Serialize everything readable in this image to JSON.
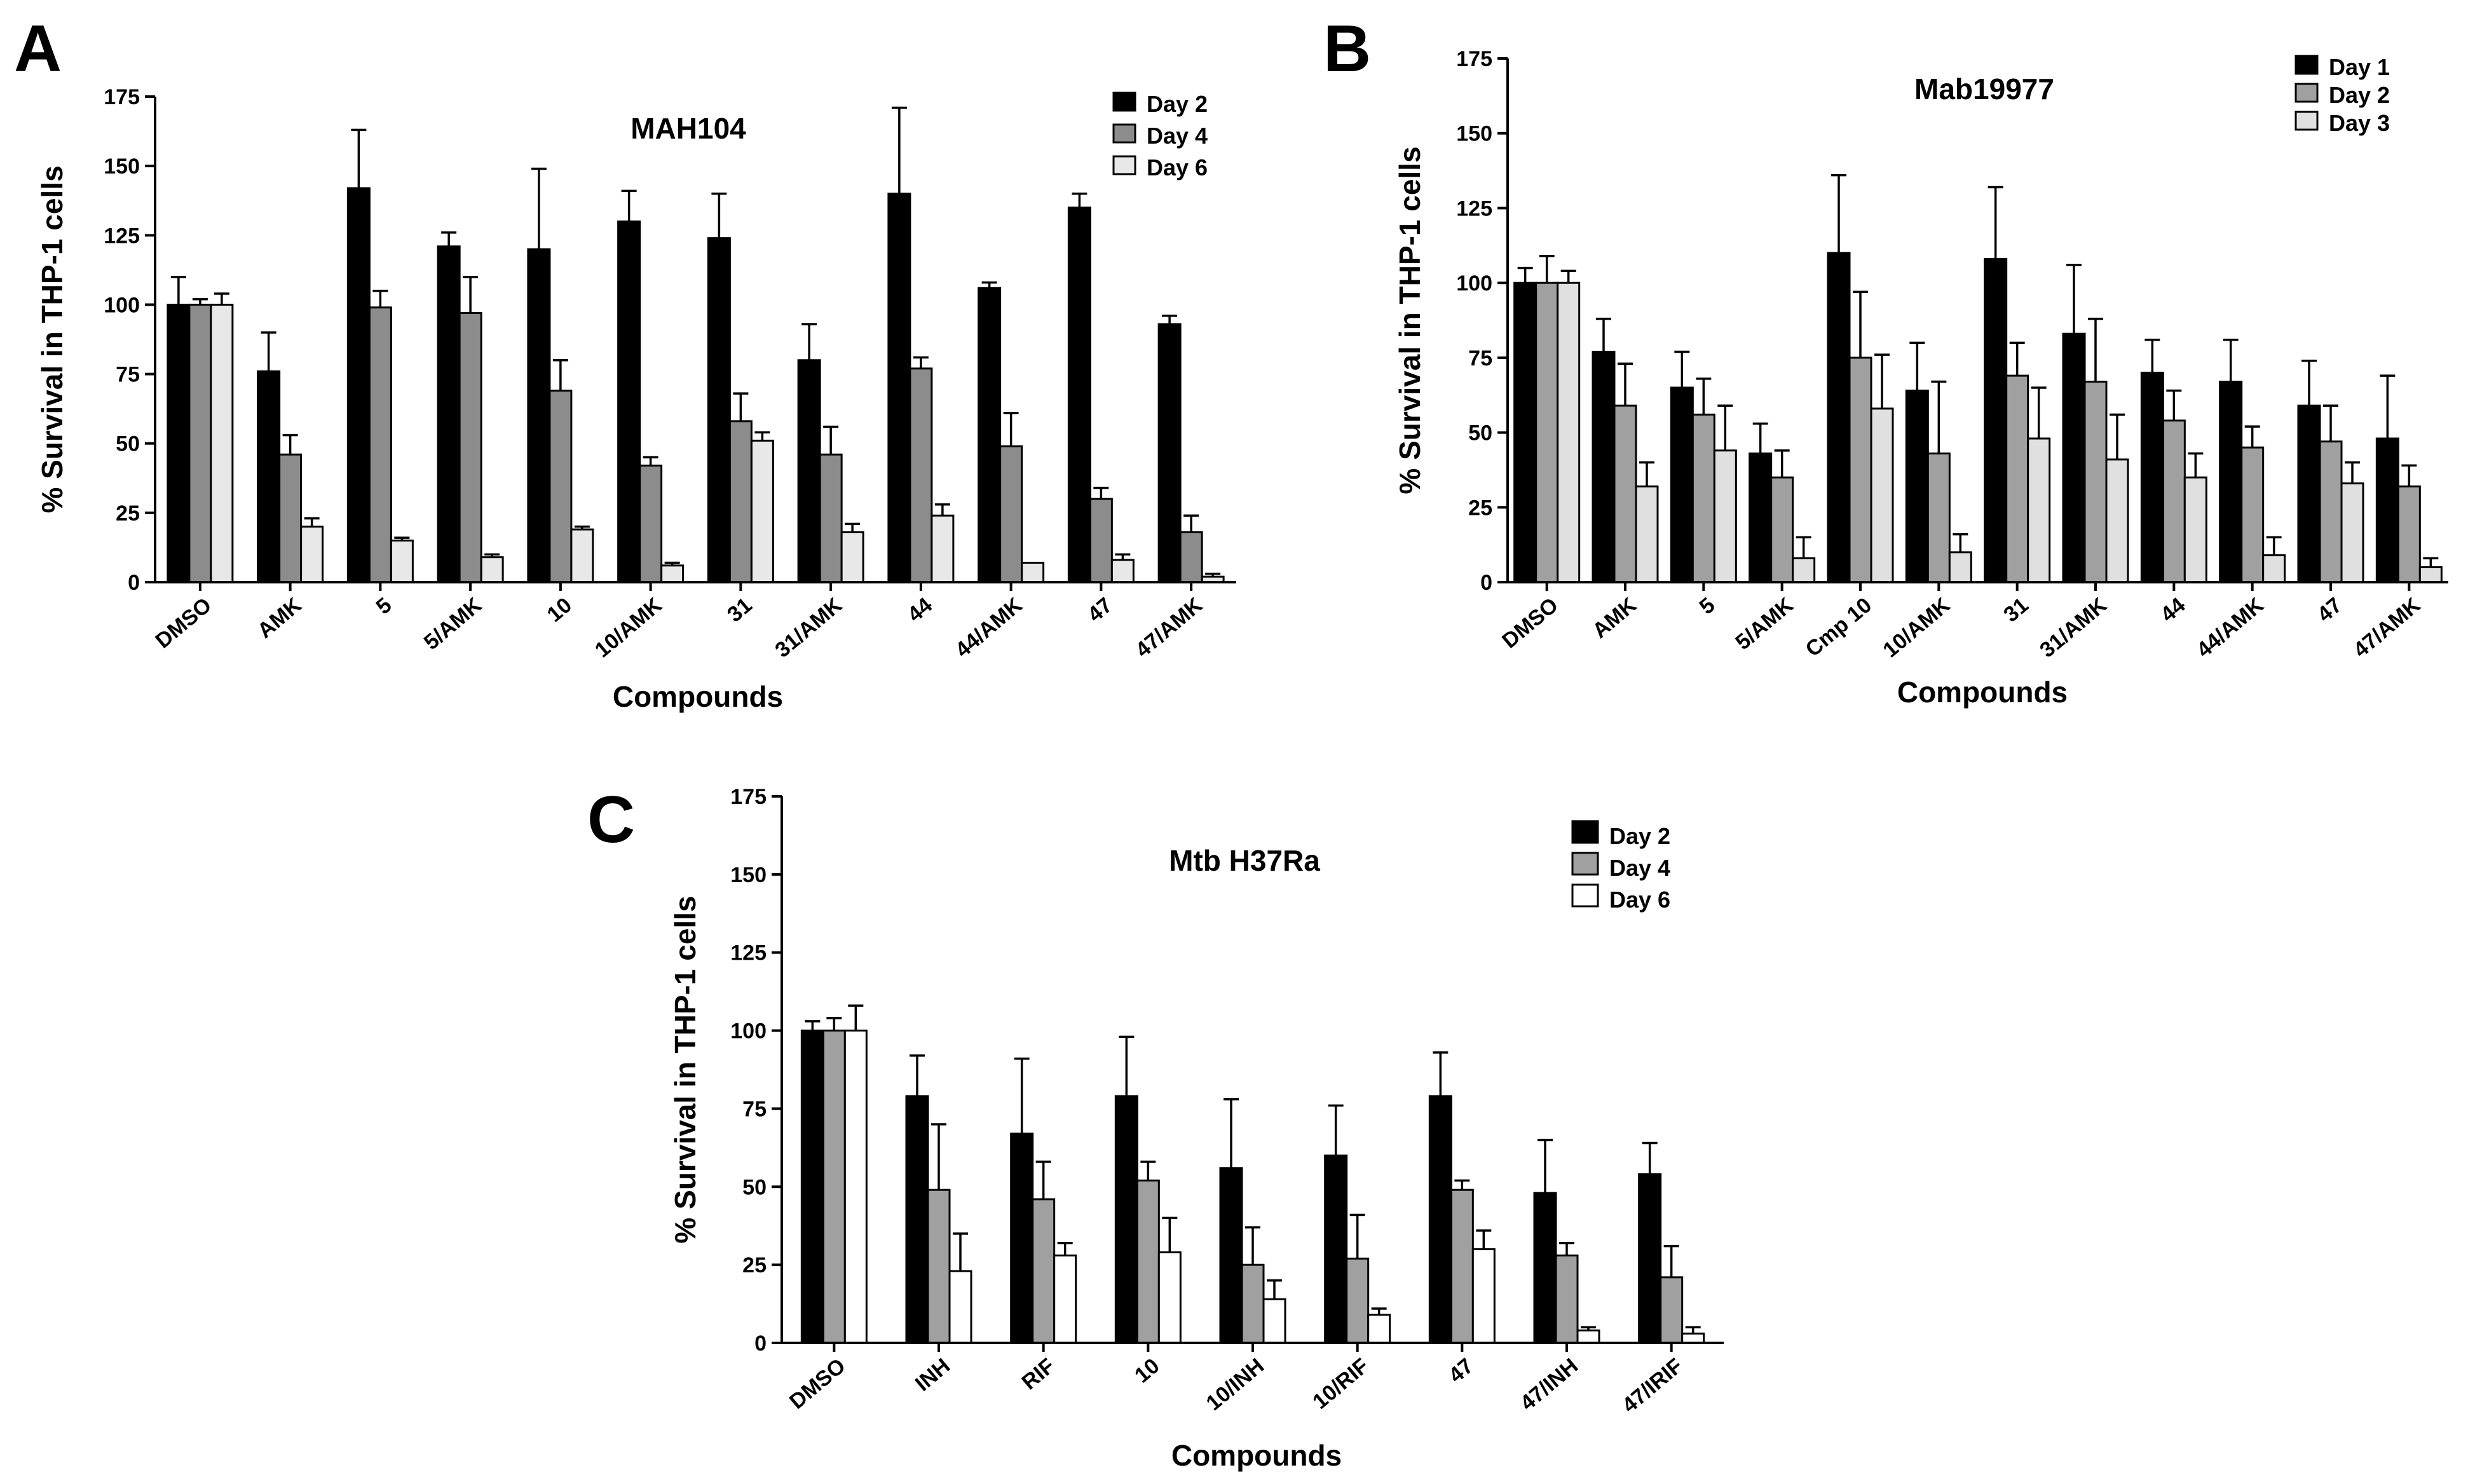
{
  "chart_data": [
    {
      "panel": "A",
      "type": "bar",
      "title": "MAH104",
      "xlabel": "Compounds",
      "ylabel": "% Survival in THP-1 cells",
      "ylim": [
        0,
        175
      ],
      "yticks": [
        0,
        25,
        50,
        75,
        100,
        125,
        150,
        175
      ],
      "categories": [
        "DMSO",
        "AMK",
        "5",
        "5/AMK",
        "10",
        "10/AMK",
        "31",
        "31/AMK",
        "44",
        "44/AMK",
        "47",
        "47/AMK"
      ],
      "series": [
        {
          "name": "Day 2",
          "color": "#000000",
          "values": [
            100,
            76,
            142,
            121,
            120,
            130,
            124,
            80,
            140,
            106,
            135,
            93
          ],
          "errors": [
            10,
            14,
            21,
            5,
            29,
            11,
            16,
            13,
            31,
            2,
            5,
            3
          ]
        },
        {
          "name": "Day 4",
          "color": "#8c8c8c",
          "values": [
            100,
            46,
            99,
            97,
            69,
            42,
            58,
            46,
            77,
            49,
            30,
            18
          ],
          "errors": [
            2,
            7,
            6,
            13,
            11,
            3,
            10,
            10,
            4,
            12,
            4,
            6
          ]
        },
        {
          "name": "Day 6",
          "color": "#e8e8e8",
          "values": [
            100,
            20,
            15,
            9,
            19,
            6,
            51,
            18,
            24,
            7,
            8,
            2
          ],
          "errors": [
            4,
            3,
            1,
            1,
            1,
            1,
            3,
            3,
            4,
            0,
            2,
            1
          ]
        }
      ],
      "grid": false,
      "legend": "top-right"
    },
    {
      "panel": "B",
      "type": "bar",
      "title": "Mab19977",
      "xlabel": "Compounds",
      "ylabel": "% Survival in THP-1 cells",
      "ylim": [
        0,
        175
      ],
      "yticks": [
        0,
        25,
        50,
        75,
        100,
        125,
        150,
        175
      ],
      "categories": [
        "DMSO",
        "AMK",
        "5",
        "5/AMK",
        "Cmp 10",
        "10/AMK",
        "31",
        "31/AMK",
        "44",
        "44/AMK",
        "47",
        "47/AMK"
      ],
      "series": [
        {
          "name": "Day 1",
          "color": "#000000",
          "values": [
            100,
            77,
            65,
            43,
            110,
            64,
            108,
            83,
            70,
            67,
            59,
            48
          ],
          "errors": [
            5,
            11,
            12,
            10,
            26,
            16,
            24,
            23,
            11,
            14,
            15,
            21
          ]
        },
        {
          "name": "Day 2",
          "color": "#a0a0a0",
          "values": [
            100,
            59,
            56,
            35,
            75,
            43,
            69,
            67,
            54,
            45,
            47,
            32
          ],
          "errors": [
            9,
            14,
            12,
            9,
            22,
            24,
            11,
            21,
            10,
            7,
            12,
            7
          ]
        },
        {
          "name": "Day 3",
          "color": "#e0e0e0",
          "values": [
            100,
            32,
            44,
            8,
            58,
            10,
            48,
            41,
            35,
            9,
            33,
            5
          ],
          "errors": [
            4,
            8,
            15,
            7,
            18,
            6,
            17,
            15,
            8,
            6,
            7,
            3
          ]
        }
      ],
      "grid": false,
      "legend": "top-right"
    },
    {
      "panel": "C",
      "type": "bar",
      "title": "Mtb H37Ra",
      "xlabel": "Compounds",
      "ylabel": "% Survival in THP-1 cells",
      "ylim": [
        0,
        175
      ],
      "yticks": [
        0,
        25,
        50,
        75,
        100,
        125,
        150,
        175
      ],
      "categories": [
        "DMSO",
        "INH",
        "RIF",
        "10",
        "10/INH",
        "10/RIF",
        "47",
        "47/INH",
        "47/IRIF"
      ],
      "series": [
        {
          "name": "Day 2",
          "color": "#000000",
          "values": [
            100,
            79,
            67,
            79,
            56,
            60,
            79,
            48,
            54
          ],
          "errors": [
            3,
            13,
            24,
            19,
            22,
            16,
            14,
            17,
            10
          ]
        },
        {
          "name": "Day 4",
          "color": "#a0a0a0",
          "values": [
            100,
            49,
            46,
            52,
            25,
            27,
            49,
            28,
            21
          ],
          "errors": [
            4,
            21,
            12,
            6,
            12,
            14,
            3,
            4,
            10
          ]
        },
        {
          "name": "Day 6",
          "color": "#ffffff",
          "values": [
            100,
            23,
            28,
            29,
            14,
            9,
            30,
            4,
            3
          ],
          "errors": [
            8,
            12,
            4,
            11,
            6,
            2,
            6,
            1,
            2
          ]
        }
      ],
      "grid": false,
      "legend": "top-right"
    }
  ]
}
